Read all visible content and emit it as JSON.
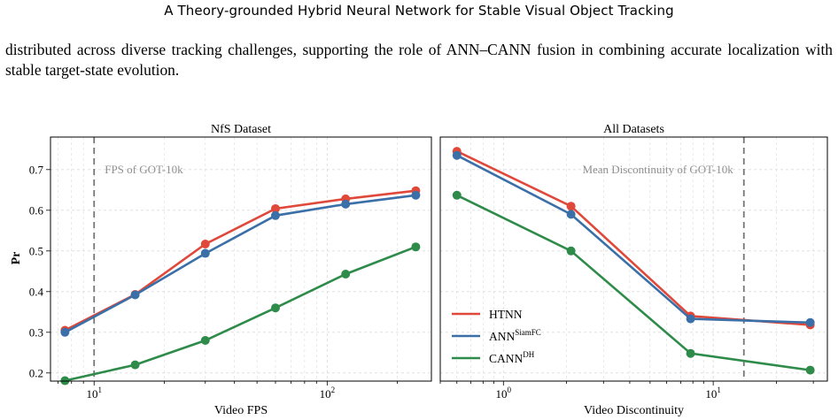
{
  "header": {
    "running_title": "A Theory-grounded Hybrid Neural Network for Stable Visual Object Tracking"
  },
  "body": {
    "paragraph": "distributed across diverse tracking challenges, supporting the role of ANN–CANN fusion in combining accurate localization with stable target-state evolution."
  },
  "figure": {
    "ylabel": "Pr",
    "yticks": [
      "0.2",
      "0.3",
      "0.4",
      "0.5",
      "0.6",
      "0.7"
    ],
    "legend": {
      "placement": "lower-left of right panel",
      "entries": [
        {
          "base": "HTNN",
          "sup": ""
        },
        {
          "base": "ANN",
          "sup": "SiamFC"
        },
        {
          "base": "CANN",
          "sup": "DH"
        }
      ]
    },
    "colors": {
      "HTNN": "#e0483a",
      "ANN": "#3a6fa8",
      "CANN": "#2e8b4a",
      "vline": "#777777",
      "grid": "#dcdcdc"
    }
  },
  "chart_data": [
    {
      "type": "line",
      "title": "NfS Dataset",
      "xlabel": "Video FPS",
      "ylabel": "Pr",
      "xscale": "log",
      "xtick_labels": [
        "10^1",
        "10^2"
      ],
      "annotation": "FPS of GOT-10k",
      "vline_x": 10,
      "xlim": [
        6.5,
        280
      ],
      "ylim": [
        0.18,
        0.78
      ],
      "grid": true,
      "series": [
        {
          "name": "HTNN",
          "x": [
            7.5,
            15,
            30,
            60,
            120,
            240
          ],
          "values": [
            0.305,
            0.393,
            0.517,
            0.604,
            0.628,
            0.648
          ]
        },
        {
          "name": "ANN SiamFC",
          "x": [
            7.5,
            15,
            30,
            60,
            120,
            240
          ],
          "values": [
            0.3,
            0.392,
            0.494,
            0.587,
            0.615,
            0.637
          ]
        },
        {
          "name": "CANN DH",
          "x": [
            7.5,
            15,
            30,
            60,
            120,
            240
          ],
          "values": [
            0.181,
            0.22,
            0.28,
            0.36,
            0.443,
            0.51
          ]
        }
      ]
    },
    {
      "type": "line",
      "title": "All Datasets",
      "xlabel": "Video Discontinuity",
      "xscale": "log",
      "xtick_labels": [
        "10^0",
        "10^1"
      ],
      "annotation": "Mean Discontinuity of GOT-10k",
      "vline_x": 14,
      "xlim": [
        0.5,
        35
      ],
      "ylim": [
        0.18,
        0.78
      ],
      "grid": true,
      "legend": "lower-left",
      "series": [
        {
          "name": "HTNN",
          "x": [
            0.6,
            2.1,
            7.8,
            29
          ],
          "values": [
            0.745,
            0.61,
            0.34,
            0.318
          ]
        },
        {
          "name": "ANN SiamFC",
          "x": [
            0.6,
            2.1,
            7.8,
            29
          ],
          "values": [
            0.735,
            0.59,
            0.333,
            0.324
          ]
        },
        {
          "name": "CANN DH",
          "x": [
            0.6,
            2.1,
            7.8,
            29
          ],
          "values": [
            0.637,
            0.5,
            0.248,
            0.207
          ]
        }
      ]
    }
  ]
}
